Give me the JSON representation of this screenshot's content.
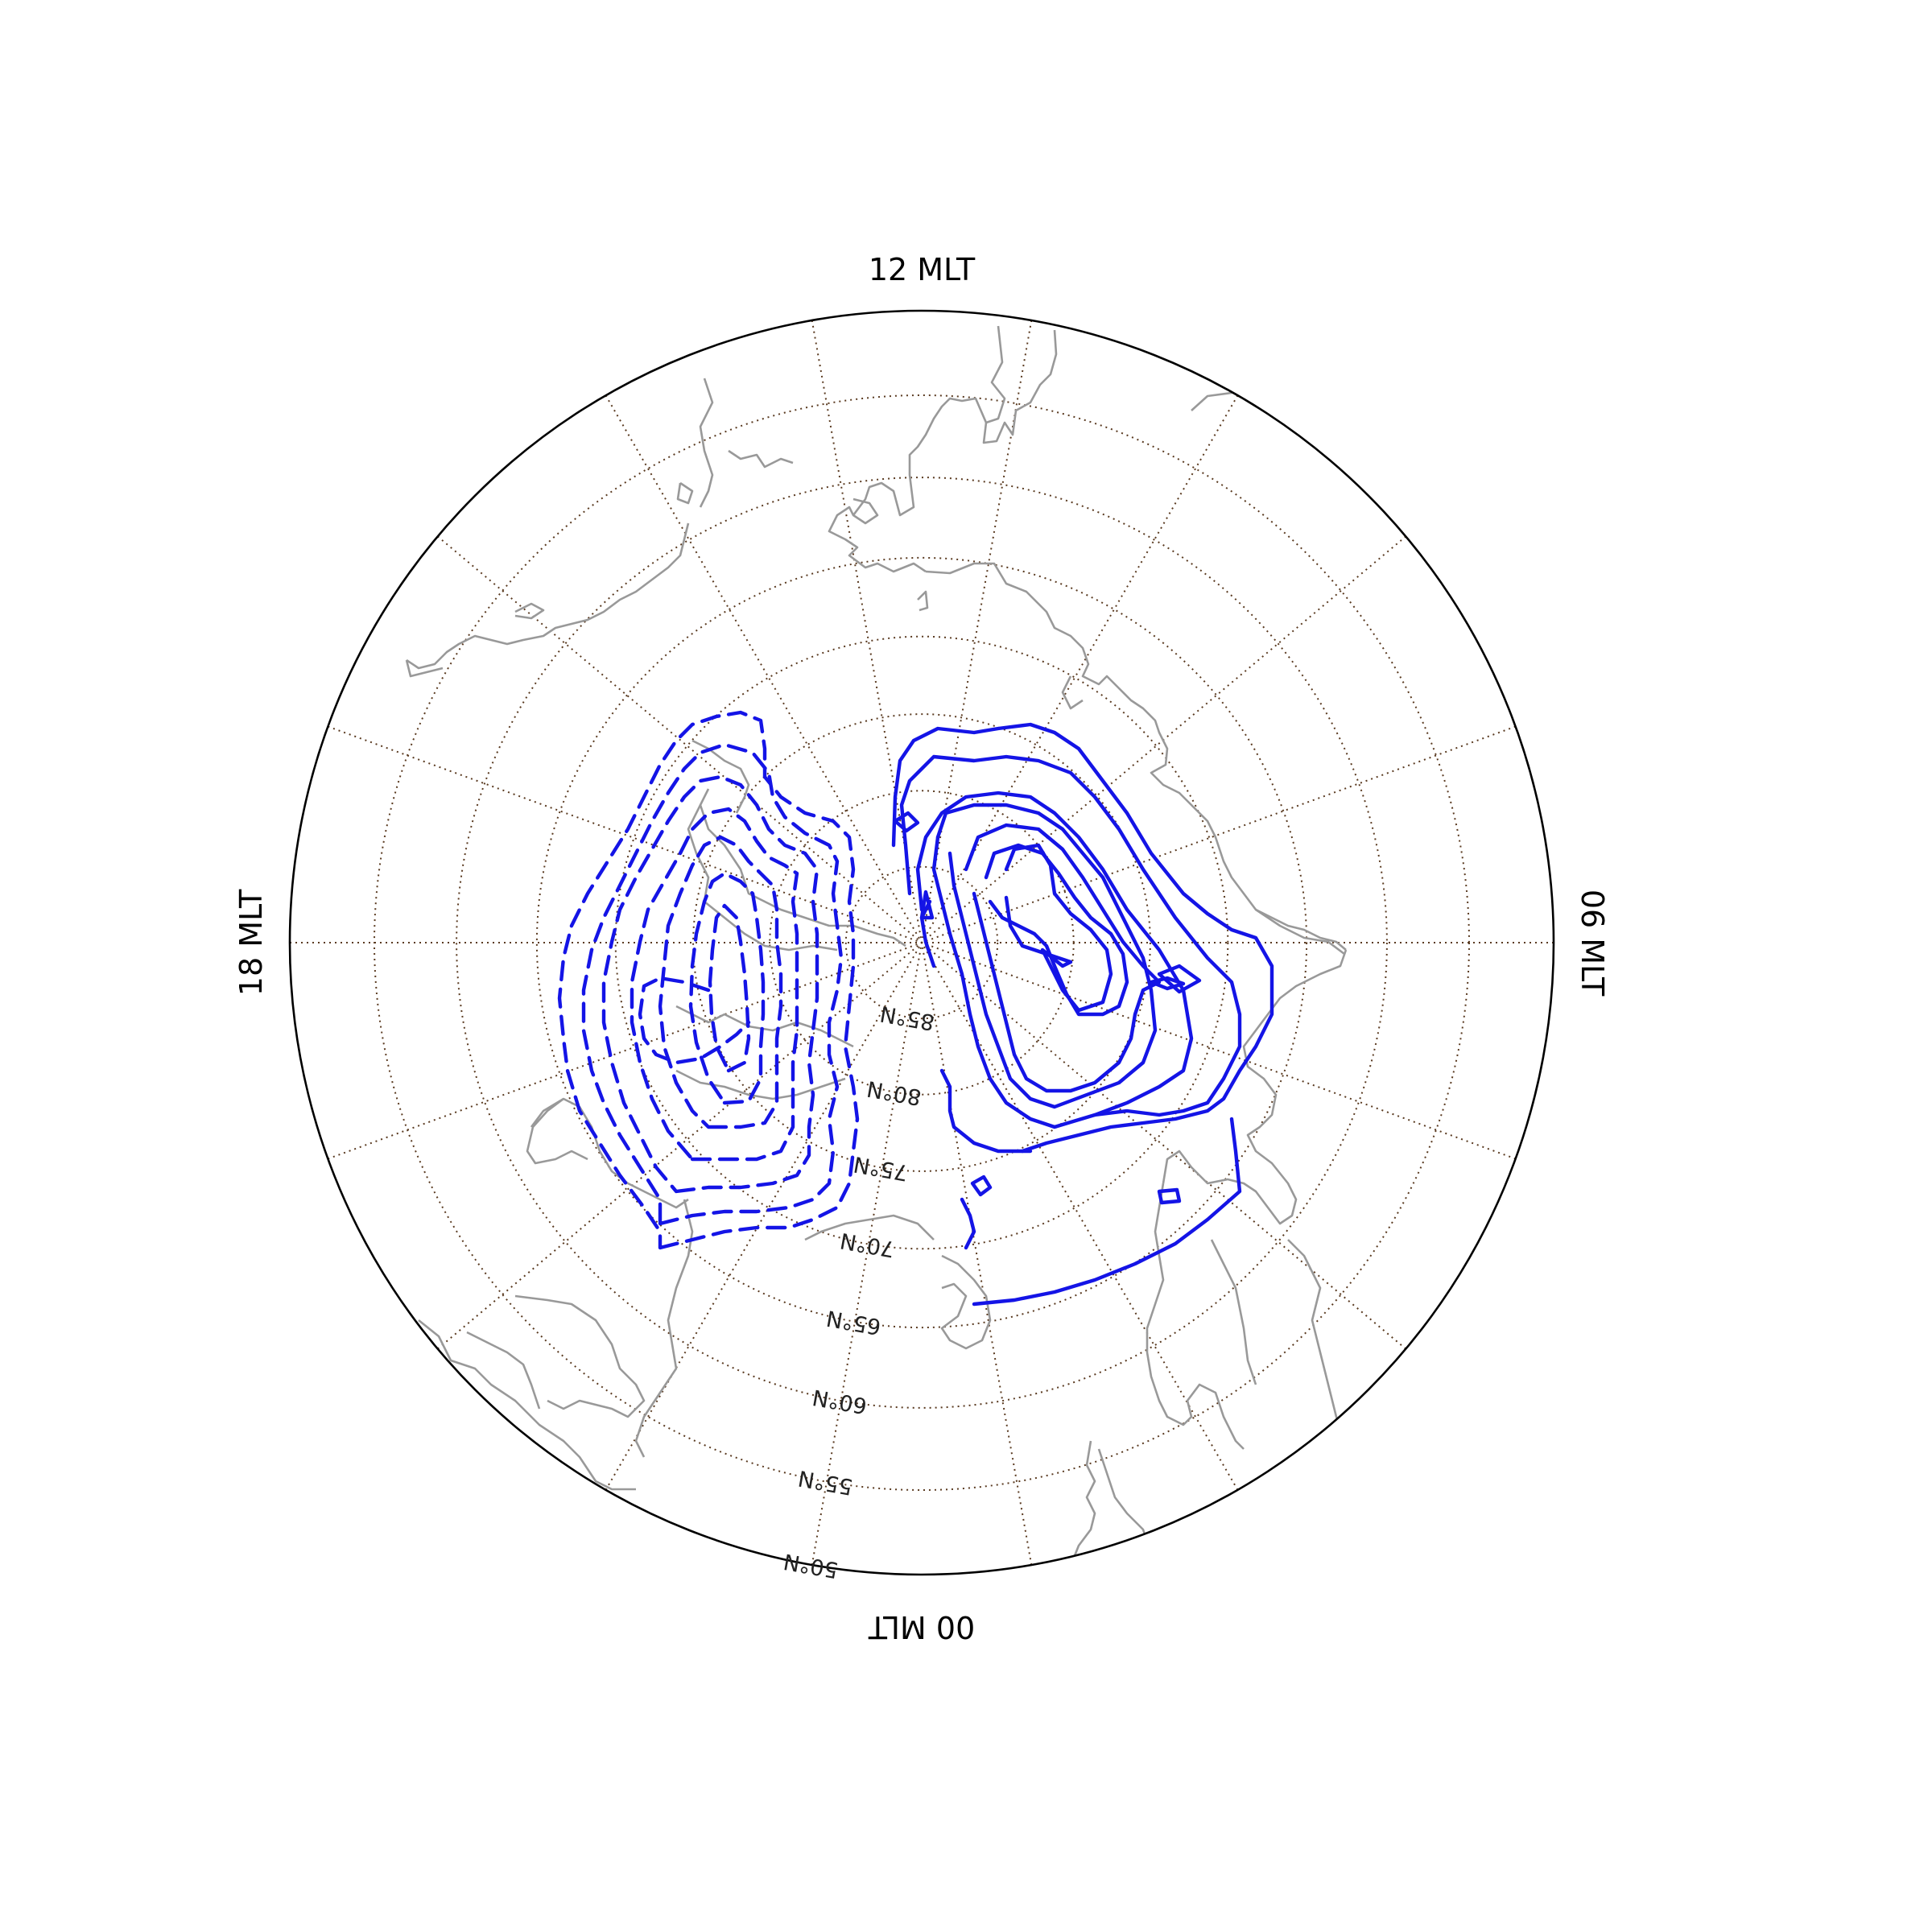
{
  "mlt_labels": {
    "noon": "12 MLT",
    "dusk": "18 MLT",
    "dawn": "06 MLT",
    "midnight": "00 MLT"
  },
  "latitude_labels": [
    "85°N",
    "80°N",
    "75°N",
    "70°N",
    "65°N",
    "60°N",
    "55°N",
    "50°N"
  ],
  "latitudes_deg": [
    85,
    80,
    75,
    70,
    65,
    60,
    55,
    50
  ],
  "meridian_spacing_deg": 20,
  "colors": {
    "contour": "#1414e6",
    "coastline": "#999999",
    "gridline": "#5a3a20",
    "boundary": "#000000"
  },
  "contours": {
    "positive_style": "solid",
    "negative_style": "dashed",
    "positive_cell": "dawn",
    "negative_cell": "dusk"
  }
}
